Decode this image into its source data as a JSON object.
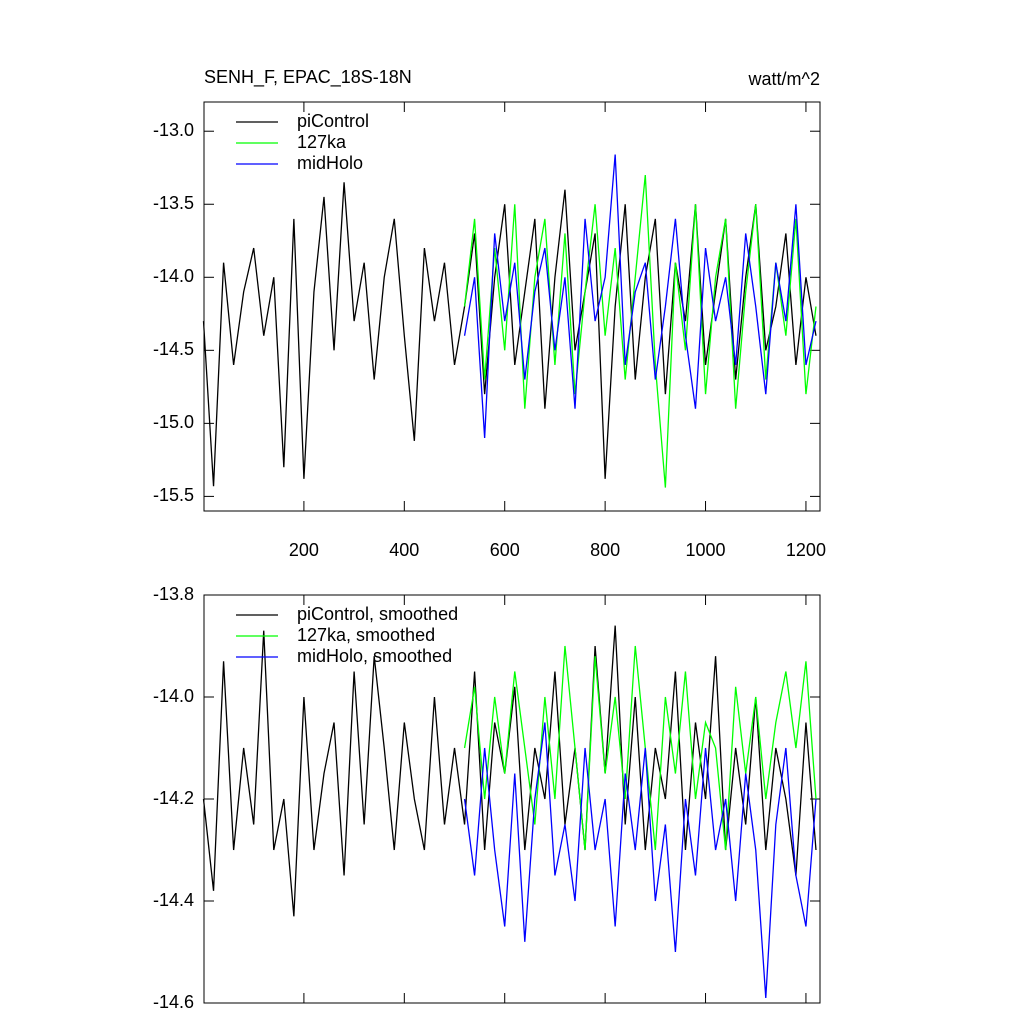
{
  "chart_data": [
    {
      "type": "line",
      "title": "SENH_F, EPAC_18S-18N",
      "units": "watt/m^2",
      "legend": "upper left",
      "xlim": [
        1,
        1228
      ],
      "xticks": [
        200,
        400,
        600,
        800,
        1000,
        1200
      ],
      "ylim": [
        -15.6,
        -12.8
      ],
      "yticks": [
        {
          "value": -13,
          "label": "-13.0"
        },
        -13.5,
        {
          "value": -14,
          "label": "-14.0"
        },
        -14.5,
        {
          "value": -15,
          "label": "-15.0"
        },
        -15.5
      ],
      "x": [
        0,
        20,
        40,
        60,
        80,
        100,
        120,
        140,
        160,
        180,
        200,
        220,
        240,
        260,
        280,
        300,
        320,
        340,
        360,
        380,
        400,
        420,
        440,
        460,
        480,
        500,
        520,
        540,
        560,
        580,
        600,
        620,
        640,
        660,
        680,
        700,
        720,
        740,
        760,
        780,
        800,
        820,
        840,
        860,
        880,
        900,
        920,
        940,
        960,
        980,
        1000,
        1020,
        1040,
        1060,
        1080,
        1100,
        1120,
        1140,
        1160,
        1180,
        1200,
        1220
      ],
      "series": [
        {
          "name": "piControl",
          "color": "#000000",
          "values": [
            -14.3,
            -15.43,
            -13.9,
            -14.6,
            -14.1,
            -13.8,
            -14.4,
            -14.0,
            -15.3,
            -13.6,
            -15.38,
            -14.1,
            -13.45,
            -14.5,
            -13.35,
            -14.3,
            -13.9,
            -14.7,
            -14.0,
            -13.6,
            -14.4,
            -15.12,
            -13.8,
            -14.3,
            -13.9,
            -14.6,
            -14.2,
            -13.7,
            -14.8,
            -14.0,
            -13.5,
            -14.6,
            -14.1,
            -13.6,
            -14.9,
            -14.0,
            -13.4,
            -14.5,
            -14.1,
            -13.7,
            -15.38,
            -14.2,
            -13.5,
            -14.7,
            -14.0,
            -13.6,
            -14.8,
            -13.9,
            -14.3,
            -13.5,
            -14.6,
            -14.1,
            -13.6,
            -14.7,
            -14.0,
            -13.5,
            -14.5,
            -14.2,
            -13.7,
            -14.6,
            -14.0,
            -14.4
          ]
        },
        {
          "name": "127ka",
          "color": "#00ff00",
          "values": [
            null,
            null,
            null,
            null,
            null,
            null,
            null,
            null,
            null,
            null,
            null,
            null,
            null,
            null,
            null,
            null,
            null,
            null,
            null,
            null,
            null,
            null,
            null,
            null,
            null,
            null,
            -14.2,
            -13.6,
            -14.7,
            -13.8,
            -14.5,
            -13.5,
            -14.9,
            -14.0,
            -13.6,
            -14.6,
            -13.7,
            -14.8,
            -14.1,
            -13.5,
            -14.4,
            -13.8,
            -14.7,
            -14.0,
            -13.3,
            -14.6,
            -15.44,
            -13.9,
            -14.5,
            -13.5,
            -14.8,
            -14.0,
            -13.6,
            -14.9,
            -14.1,
            -13.5,
            -14.7,
            -13.9,
            -14.4,
            -13.6,
            -14.8,
            -14.2
          ]
        },
        {
          "name": "midHolo",
          "color": "#0000ff",
          "values": [
            null,
            null,
            null,
            null,
            null,
            null,
            null,
            null,
            null,
            null,
            null,
            null,
            null,
            null,
            null,
            null,
            null,
            null,
            null,
            null,
            null,
            null,
            null,
            null,
            null,
            null,
            -14.4,
            -14.0,
            -15.1,
            -13.7,
            -14.3,
            -13.9,
            -14.7,
            -14.1,
            -13.8,
            -14.5,
            -14.0,
            -14.9,
            -13.6,
            -14.3,
            -14.0,
            -13.16,
            -14.6,
            -14.1,
            -13.9,
            -14.7,
            -14.2,
            -13.6,
            -14.4,
            -14.9,
            -13.8,
            -14.3,
            -14.0,
            -14.6,
            -13.7,
            -14.2,
            -14.8,
            -13.9,
            -14.3,
            -13.5,
            -14.6,
            -14.3
          ]
        }
      ]
    },
    {
      "type": "line",
      "legend": "upper left",
      "xlim": [
        1,
        1228
      ],
      "ylim": [
        -14.6,
        -13.8
      ],
      "yticks": [
        -13.8,
        {
          "value": -14,
          "label": "-14.0"
        },
        -14.2,
        -14.4,
        -14.6
      ],
      "x": [
        0,
        20,
        40,
        60,
        80,
        100,
        120,
        140,
        160,
        180,
        200,
        220,
        240,
        260,
        280,
        300,
        320,
        340,
        360,
        380,
        400,
        420,
        440,
        460,
        480,
        500,
        520,
        540,
        560,
        580,
        600,
        620,
        640,
        660,
        680,
        700,
        720,
        740,
        760,
        780,
        800,
        820,
        840,
        860,
        880,
        900,
        920,
        940,
        960,
        980,
        1000,
        1020,
        1040,
        1060,
        1080,
        1100,
        1120,
        1140,
        1160,
        1180,
        1200,
        1220
      ],
      "series": [
        {
          "name": "piControl, smoothed",
          "color": "#000000",
          "values": [
            -14.2,
            -14.38,
            -13.93,
            -14.3,
            -14.1,
            -14.25,
            -13.87,
            -14.3,
            -14.2,
            -14.43,
            -14.0,
            -14.3,
            -14.15,
            -14.05,
            -14.35,
            -13.95,
            -14.25,
            -13.92,
            -14.1,
            -14.3,
            -14.05,
            -14.2,
            -14.3,
            -14.0,
            -14.25,
            -14.1,
            -14.25,
            -13.95,
            -14.3,
            -14.05,
            -14.15,
            -13.98,
            -14.3,
            -14.1,
            -14.2,
            -13.95,
            -14.25,
            -14.1,
            -14.3,
            -13.9,
            -14.15,
            -13.86,
            -14.25,
            -14.0,
            -14.3,
            -14.1,
            -14.2,
            -13.95,
            -14.3,
            -14.05,
            -14.2,
            -13.92,
            -14.3,
            -14.1,
            -14.25,
            -14.0,
            -14.3,
            -14.1,
            -14.2,
            -14.35,
            -14.05,
            -14.3
          ]
        },
        {
          "name": "127ka, smoothed",
          "color": "#00ff00",
          "values": [
            null,
            null,
            null,
            null,
            null,
            null,
            null,
            null,
            null,
            null,
            null,
            null,
            null,
            null,
            null,
            null,
            null,
            null,
            null,
            null,
            null,
            null,
            null,
            null,
            null,
            null,
            -14.1,
            -13.98,
            -14.2,
            -14.0,
            -14.15,
            -13.95,
            -14.1,
            -14.25,
            -14.0,
            -14.2,
            -13.9,
            -14.1,
            -14.3,
            -13.92,
            -14.15,
            -14.0,
            -14.2,
            -13.9,
            -14.1,
            -14.3,
            -14.0,
            -14.15,
            -13.95,
            -14.2,
            -14.05,
            -14.1,
            -14.3,
            -13.98,
            -14.15,
            -14.0,
            -14.2,
            -14.05,
            -13.95,
            -14.1,
            -13.93,
            -14.2
          ]
        },
        {
          "name": "midHolo, smoothed",
          "color": "#0000ff",
          "values": [
            null,
            null,
            null,
            null,
            null,
            null,
            null,
            null,
            null,
            null,
            null,
            null,
            null,
            null,
            null,
            null,
            null,
            null,
            null,
            null,
            null,
            null,
            null,
            null,
            null,
            null,
            -14.2,
            -14.35,
            -14.1,
            -14.3,
            -14.45,
            -14.15,
            -14.48,
            -14.2,
            -14.05,
            -14.35,
            -14.25,
            -14.4,
            -14.1,
            -14.3,
            -14.2,
            -14.45,
            -14.15,
            -14.3,
            -14.1,
            -14.4,
            -14.25,
            -14.5,
            -14.2,
            -14.35,
            -14.1,
            -14.3,
            -14.2,
            -14.4,
            -14.15,
            -14.3,
            -14.59,
            -14.25,
            -14.1,
            -14.35,
            -14.45,
            -14.2
          ]
        }
      ]
    }
  ]
}
